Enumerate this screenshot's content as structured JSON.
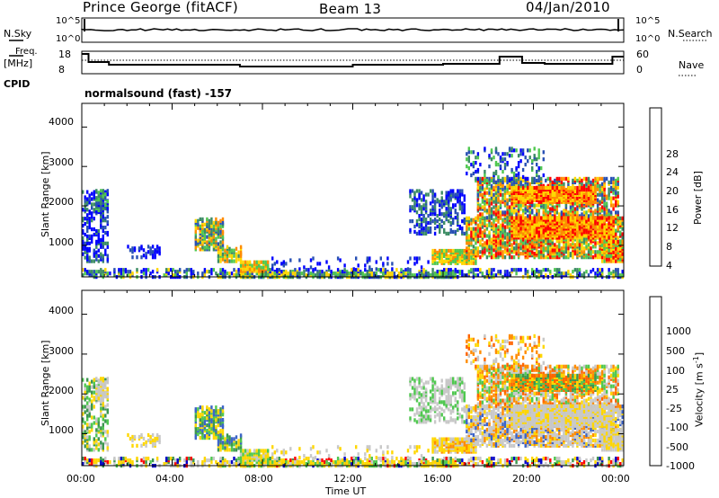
{
  "header": {
    "title": "Prince George (fitACF)",
    "beam": "Beam 13",
    "date": "04/Jan/2010"
  },
  "top_panels": {
    "nsky_label": "N.Sky",
    "nsky_ticks": [
      "10^5",
      "10^0"
    ],
    "nsearch_label": "N.Search",
    "nsearch_ticks": [
      "10^5",
      "10^0"
    ],
    "freq_label": "Freq.",
    "freq_unit": "[MHz]",
    "freq_ticks": [
      "18",
      "8"
    ],
    "nave_label": "Nave",
    "nave_ticks": [
      "60",
      "0"
    ],
    "cpid_label": "CPID",
    "cpid_text": "normalsound (fast) -157"
  },
  "chart_data": [
    {
      "type": "heatmap",
      "name": "power-panel",
      "ylabel": "Slant Range [km]",
      "ylim": [
        200,
        4600
      ],
      "yticks": [
        "1000",
        "2000",
        "3000",
        "4000"
      ],
      "xlim": [
        0,
        24
      ],
      "colorbar": {
        "label": "Power [dB]",
        "ticks": [
          "4",
          "8",
          "12",
          "16",
          "20",
          "24",
          "28"
        ],
        "colors": [
          "#0000ff",
          "#2850b4",
          "#3c8c64",
          "#50c850",
          "#ffd700",
          "#ff8c00",
          "#ff0000"
        ]
      }
    },
    {
      "type": "heatmap",
      "name": "velocity-panel",
      "ylabel": "Slant Range [km]",
      "ylim": [
        200,
        4600
      ],
      "yticks": [
        "1000",
        "2000",
        "3000",
        "4000"
      ],
      "xlim": [
        0,
        24
      ],
      "colorbar": {
        "label": "Velocity [m s",
        "label_sup": "-1",
        "label_end": "]",
        "ticks": [
          "1000",
          "500",
          "100",
          "25",
          "-25",
          "-100",
          "-500",
          "-1000"
        ],
        "colors": [
          "#0000c8",
          "#3c64c8",
          "#3c9650",
          "#50c850",
          "#c8c8c8",
          "#ffd700",
          "#ff8c00",
          "#ff6400",
          "#ff0000"
        ]
      }
    }
  ],
  "xaxis": {
    "ticks": [
      "00:00",
      "04:00",
      "08:00",
      "12:00",
      "16:00",
      "20:00",
      "00:00"
    ],
    "label": "Time UT"
  }
}
